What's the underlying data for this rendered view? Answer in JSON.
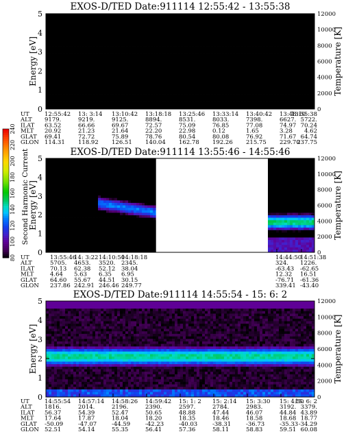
{
  "chart_data": [
    {
      "type": "heatmap",
      "title": "EXOS-D/TED   Date:911114   12:55:42 - 13:55:38",
      "ylabel": "Energy [eV]",
      "ylabel_right": "Temperature [K]",
      "ylim": [
        0,
        5
      ],
      "yticks": [
        "0",
        "1",
        "2",
        "3",
        "4",
        "5"
      ],
      "y2lim": [
        0,
        12000
      ],
      "y2ticks": [
        "0",
        "2000",
        "4000",
        "6000",
        "8000",
        "10000",
        "12000"
      ],
      "band": {
        "center": 0,
        "width": 0,
        "level": 0
      },
      "background_level": 65,
      "row_labels": [
        "UT",
        "ALT",
        "ILAT",
        "MLT",
        "GLAT",
        "GLON"
      ],
      "columns": [
        [
          "12:55:42",
          "9179.",
          "63.52",
          "20.92",
          "69.41",
          "114.31"
        ],
        [
          "13: 3:14",
          "9219.",
          "66.66",
          "21.23",
          "72.72",
          "118.92"
        ],
        [
          "13:10:42",
          "9125.",
          "69.67",
          "21.64",
          "75.89",
          "126.51"
        ],
        [
          "13:18:18",
          "8894.",
          "72.57",
          "22.20",
          "78.76",
          "140.04"
        ],
        [
          "13:25:46",
          "8531.",
          "75.09",
          "22.98",
          "80.54",
          "162.78"
        ],
        [
          "13:33:14",
          "8033.",
          "76.85",
          "0.12",
          "80.08",
          "192.26"
        ],
        [
          "13:40:42",
          "7398.",
          "77.08",
          "1.65",
          "76.92",
          "215.75"
        ],
        [
          "13:48:10",
          "6627.",
          "74.97",
          "3.28",
          "71.67",
          "229.70"
        ],
        [
          "13:55:38",
          "5722.",
          "70.24",
          "4.62",
          "64.74",
          "237.75"
        ]
      ]
    },
    {
      "type": "heatmap",
      "title": "EXOS-D/TED   Date:911114   13:55:46 - 14:55:46",
      "ylabel": "Energy [eV]",
      "ylabel_right": "Temperature [K]",
      "ylim": [
        0,
        5
      ],
      "yticks": [
        "0",
        "1",
        "2",
        "3",
        "4",
        "5"
      ],
      "y2lim": [
        0,
        12000
      ],
      "y2ticks": [
        "0",
        "2000",
        "4000",
        "6000",
        "8000",
        "10000",
        "12000"
      ],
      "data_gap": [
        "14:18:18",
        "14:44:50"
      ],
      "background_level": 68,
      "row_labels": [
        "UT",
        "ALT",
        "ILAT",
        "MLT",
        "GLAT",
        "GLON"
      ],
      "columns": [
        [
          "13:55:46",
          "5705.",
          "70.13",
          "4.64",
          "64.60",
          "237.86"
        ],
        [
          "14: 3:22",
          "4653.",
          "62.38",
          "5.63",
          "55.67",
          "242.91"
        ],
        [
          "14:10:50",
          "3520.",
          "52.12",
          "6.35",
          "44.51",
          "246.46"
        ],
        [
          "14:18:18",
          "2345.",
          "38.04",
          "6.95",
          "30.15",
          "249.77"
        ],
        [
          "14:44:50",
          "324.",
          "-63.43",
          "12.32",
          "-76.71",
          "339.41"
        ],
        [
          "14:51:38",
          "1226.",
          "-62.65",
          "16.51",
          "-61.36",
          "-43.40"
        ]
      ]
    },
    {
      "type": "heatmap",
      "title": "EXOS-D/TED   Date:911114   14:55:54 - 15: 6: 2",
      "ylabel": "Energy [eV]",
      "ylabel_right": "Temperature [K]",
      "ylim": [
        0,
        5
      ],
      "yticks": [
        "0",
        "1",
        "2",
        "3",
        "4",
        "5"
      ],
      "y2lim": [
        0,
        12000
      ],
      "y2ticks": [
        "0",
        "2000",
        "4000",
        "6000",
        "8000",
        "10000",
        "12000"
      ],
      "band": {
        "center": 2.1,
        "width": 0.75,
        "level": 148
      },
      "background_level": 85,
      "row_labels": [
        "UT",
        "ALT",
        "ILAT",
        "MLT",
        "GLAT",
        "GLON"
      ],
      "columns": [
        [
          "14:55:54",
          "1816.",
          "56.37",
          "17.64",
          "-50.09",
          "52.51"
        ],
        [
          "14:57:14",
          "2014.",
          "54.39",
          "17.87",
          "-47.07",
          "54.14"
        ],
        [
          "14:58:26",
          "2196.",
          "52.47",
          "18.04",
          "-44.59",
          "55.35"
        ],
        [
          "14:59:42",
          "2390.",
          "50.65",
          "18.20",
          "-42.23",
          "56.41"
        ],
        [
          "15: 1: 2",
          "2597.",
          "48.88",
          "18.35",
          "-40.03",
          "57.36"
        ],
        [
          "15: 2:14",
          "2784.",
          "47.44",
          "18.46",
          "-38.31",
          "58.11"
        ],
        [
          "15: 3:30",
          "2983.",
          "46.07",
          "18.58",
          "-36.73",
          "58.83"
        ],
        [
          "15: 4:50",
          "3192.",
          "44.84",
          "18.68",
          "-35.33",
          "59.51"
        ],
        [
          "15: 6: 2",
          "3379.",
          "43.89",
          "18.77",
          "-34.29",
          "60.08"
        ]
      ]
    }
  ],
  "colorbar": {
    "label": "Second Harmonic Current",
    "range": [
      80,
      240
    ],
    "ticks": [
      "80",
      "100",
      "120",
      "140",
      "160",
      "180",
      "200",
      "220",
      "240"
    ]
  },
  "colors": {
    "grid": "#000000",
    "gap": "#ffffff"
  }
}
